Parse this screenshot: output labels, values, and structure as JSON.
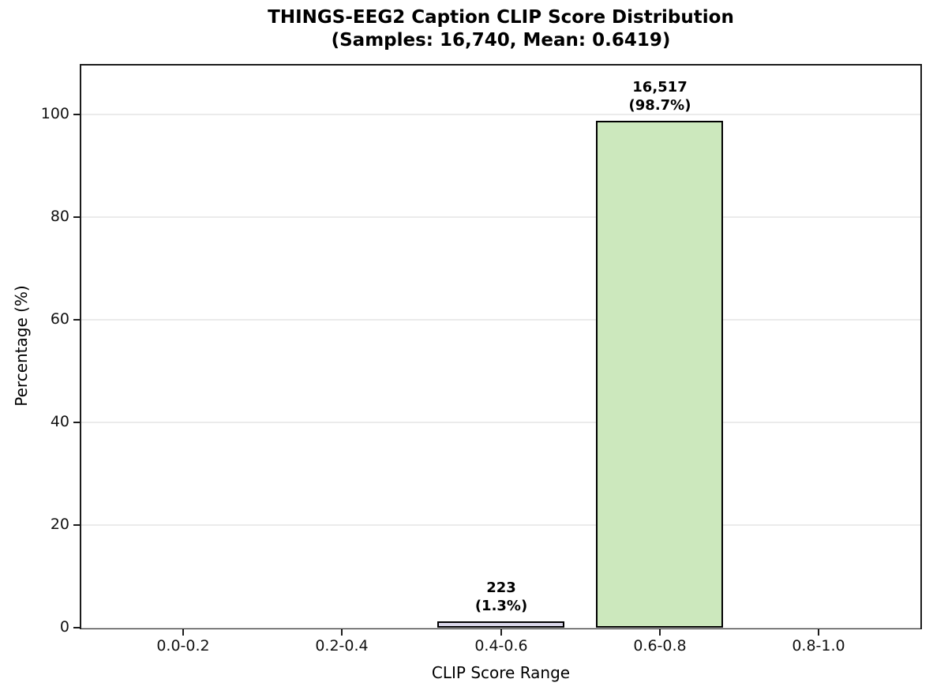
{
  "chart_data": {
    "type": "bar",
    "title": "THINGS-EEG2 Caption CLIP Score Distribution",
    "subtitle": "(Samples: 16,740, Mean: 0.6419)",
    "xlabel": "CLIP Score Range",
    "ylabel": "Percentage (%)",
    "categories": [
      "0.0-0.2",
      "0.2-0.4",
      "0.4-0.6",
      "0.6-0.8",
      "0.8-1.0"
    ],
    "values": [
      0,
      0,
      1.3,
      98.7,
      0
    ],
    "counts": [
      0,
      0,
      223,
      16517,
      0
    ],
    "bar_annotations": [
      {
        "index": 2,
        "line1": "223",
        "line2": "(1.3%)"
      },
      {
        "index": 3,
        "line1": "16,517",
        "line2": "(98.7%)"
      }
    ],
    "bar_colors": [
      "#d9d6e9",
      "#d9d6e9",
      "#d9d6e9",
      "#cce8bd",
      "#d9d6e9"
    ],
    "bar_edge_color": "#000000",
    "yticks": [
      0,
      20,
      40,
      60,
      80,
      100
    ],
    "ylim": [
      0,
      109.5
    ],
    "xlim_units": [
      -0.64,
      4.64
    ],
    "bar_width_units": 0.8,
    "grid": true,
    "grid_color": "#ebebeb",
    "legend_position": "none"
  }
}
